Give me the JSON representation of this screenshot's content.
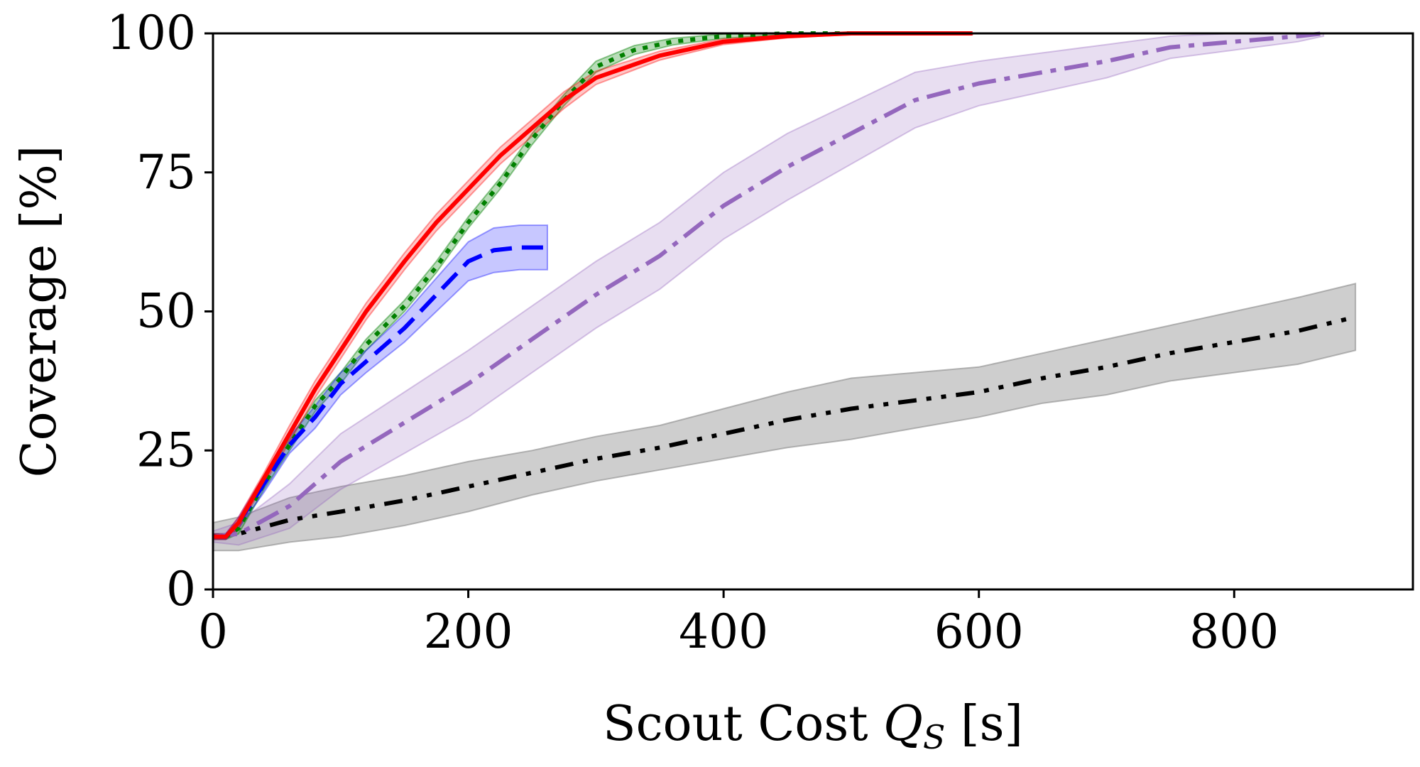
{
  "chart_data": {
    "type": "line",
    "title": "",
    "xlabel_text": "Scout Cost ",
    "xlabel_symbol": "Q",
    "xlabel_sub": "S",
    "xlabel_unit": " [s]",
    "ylabel": "Coverage [%]",
    "xlim": [
      0,
      940
    ],
    "ylim": [
      0,
      100
    ],
    "xticks": [
      0,
      200,
      400,
      600,
      800
    ],
    "yticks": [
      0,
      25,
      50,
      75,
      100
    ],
    "grid": false,
    "legend": "none",
    "series": [
      {
        "color": "#7f7f7f",
        "line_color": "#000000",
        "dash": "dashdotdot",
        "band_opacity": 0.38,
        "x": [
          0,
          20,
          60,
          100,
          150,
          200,
          250,
          300,
          350,
          400,
          450,
          500,
          550,
          600,
          650,
          700,
          750,
          800,
          850,
          895
        ],
        "y": [
          9.5,
          10,
          12.5,
          14,
          16,
          18.5,
          21,
          23.5,
          25.5,
          28,
          30.5,
          32.5,
          34,
          35.5,
          38,
          40,
          42.5,
          44.5,
          46.5,
          49
        ],
        "band": [
          2.5,
          3,
          4,
          4.5,
          4.5,
          4.5,
          4,
          4,
          4,
          4.5,
          5,
          5.5,
          5,
          4.5,
          4.5,
          5,
          5,
          5.5,
          6,
          6
        ]
      },
      {
        "color": "#9467bd",
        "line_color": "#9467bd",
        "dash": "dashdot",
        "band_opacity": 0.22,
        "x": [
          0,
          20,
          60,
          100,
          150,
          200,
          250,
          300,
          350,
          400,
          450,
          500,
          550,
          600,
          650,
          700,
          750,
          800,
          850,
          870
        ],
        "y": [
          9.5,
          10,
          15,
          23,
          30,
          37,
          45,
          53,
          60,
          69,
          76,
          82,
          88,
          91,
          93,
          95,
          97.5,
          98.5,
          99.5,
          100
        ],
        "band": [
          1,
          2,
          4,
          5,
          5.5,
          6,
          6,
          6,
          6,
          6,
          6,
          5.5,
          5,
          4,
          3.5,
          3,
          2,
          1.5,
          1,
          0.5
        ]
      },
      {
        "color": "#008000",
        "line_color": "#008000",
        "dash": "dotted",
        "band_opacity": 0.28,
        "x": [
          0,
          10,
          20,
          30,
          40,
          60,
          80,
          100,
          120,
          150,
          175,
          200,
          225,
          250,
          275,
          300,
          330,
          360,
          400,
          450,
          500
        ],
        "y": [
          9.5,
          9.5,
          11,
          15,
          19,
          26,
          33,
          38,
          44,
          51,
          58,
          66,
          73,
          81,
          88,
          94,
          97,
          98.5,
          99.5,
          100,
          100
        ],
        "band": [
          0.5,
          0.5,
          1,
          1,
          1,
          1,
          1,
          1,
          1,
          1,
          1,
          1,
          1,
          1,
          1,
          1,
          0.8,
          0.6,
          0.4,
          0.2,
          0.2
        ]
      },
      {
        "color": "#0000ff",
        "line_color": "#0000ff",
        "dash": "dashed",
        "band_opacity": 0.22,
        "x": [
          0,
          10,
          20,
          40,
          60,
          80,
          100,
          120,
          150,
          175,
          200,
          220,
          240,
          262
        ],
        "y": [
          9.5,
          9.5,
          12,
          19,
          26,
          31,
          37,
          41,
          47,
          53,
          59,
          61,
          61.5,
          61.5
        ],
        "band": [
          0.5,
          0.5,
          1,
          1.5,
          1.5,
          2,
          2,
          2,
          2.5,
          3,
          3.5,
          4,
          4,
          4
        ]
      },
      {
        "color": "#ff0000",
        "line_color": "#ff0000",
        "dash": "solid",
        "band_opacity": 0.22,
        "x": [
          0,
          10,
          20,
          30,
          40,
          60,
          80,
          100,
          120,
          150,
          175,
          200,
          225,
          250,
          275,
          300,
          325,
          350,
          400,
          450,
          500,
          550,
          595
        ],
        "y": [
          9.5,
          9.5,
          12,
          16,
          20,
          28,
          36,
          43,
          50,
          59,
          66,
          72,
          78,
          83,
          88,
          92,
          94,
          96,
          98.5,
          99.5,
          100,
          100,
          100
        ],
        "band": [
          0.5,
          0.5,
          1,
          1,
          1,
          1.5,
          1.5,
          1.5,
          1.5,
          1.5,
          1.5,
          1.5,
          1.5,
          1.5,
          1.5,
          1.2,
          1,
          0.8,
          0.5,
          0.3,
          0.2,
          0.2,
          0.2
        ]
      }
    ]
  }
}
